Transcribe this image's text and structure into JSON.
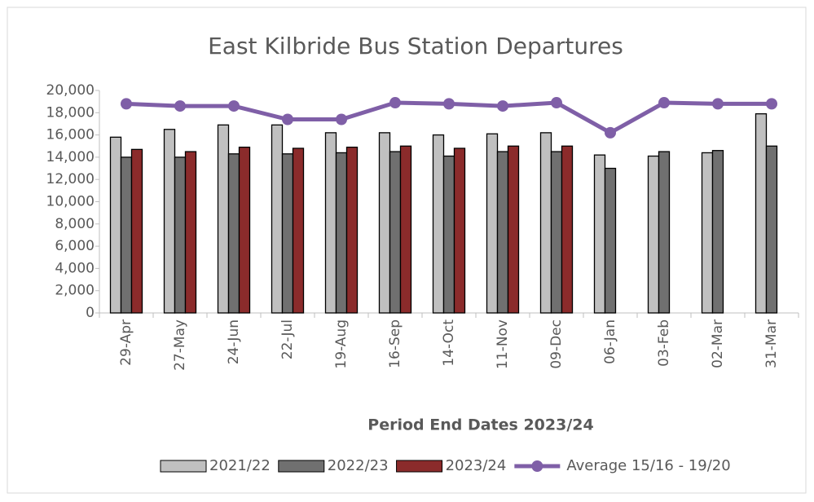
{
  "chart_data": {
    "type": "bar",
    "title": "East Kilbride Bus Station Departures",
    "x_label": "Period End Dates 2023/24",
    "categories": [
      "29-Apr",
      "27-May",
      "24-Jun",
      "22-Jul",
      "19-Aug",
      "16-Sep",
      "14-Oct",
      "11-Nov",
      "09-Dec",
      "06-Jan",
      "03-Feb",
      "02-Mar",
      "31-Mar"
    ],
    "series": [
      {
        "name": "2021/22",
        "color": "#c0c0c0",
        "values": [
          15800,
          16500,
          16900,
          16900,
          16200,
          16200,
          16000,
          16100,
          16200,
          14200,
          14100,
          14400,
          17900
        ]
      },
      {
        "name": "2022/23",
        "color": "#707070",
        "values": [
          14000,
          14000,
          14300,
          14300,
          14400,
          14500,
          14100,
          14500,
          14500,
          13000,
          14500,
          14600,
          15000
        ]
      },
      {
        "name": "2023/24",
        "color": "#8b2b2b",
        "values": [
          14700,
          14500,
          14900,
          14800,
          14900,
          15000,
          14800,
          15000,
          15000,
          null,
          null,
          null,
          null
        ]
      },
      {
        "name": "Average 15/16 - 19/20",
        "color": "#7f5fa7",
        "type": "line",
        "values": [
          18800,
          18600,
          18600,
          17400,
          17400,
          18900,
          18800,
          18600,
          18900,
          16200,
          18900,
          18800,
          18800
        ]
      }
    ],
    "ylim": [
      0,
      20000
    ],
    "yticks": [
      0,
      {
        "value": 2000,
        "label": "2,000"
      },
      {
        "value": 4000,
        "label": "4,000"
      },
      {
        "value": 6000,
        "label": "6,000"
      },
      {
        "value": 8000,
        "label": "8,000"
      },
      {
        "value": 10000,
        "label": "10,000"
      },
      {
        "value": 12000,
        "label": "12,000"
      },
      {
        "value": 14000,
        "label": "14,000"
      },
      {
        "value": 16000,
        "label": "16,000"
      },
      {
        "value": 18000,
        "label": "18,000"
      },
      {
        "value": 20000,
        "label": "20,000"
      }
    ],
    "legend": "bottom"
  }
}
